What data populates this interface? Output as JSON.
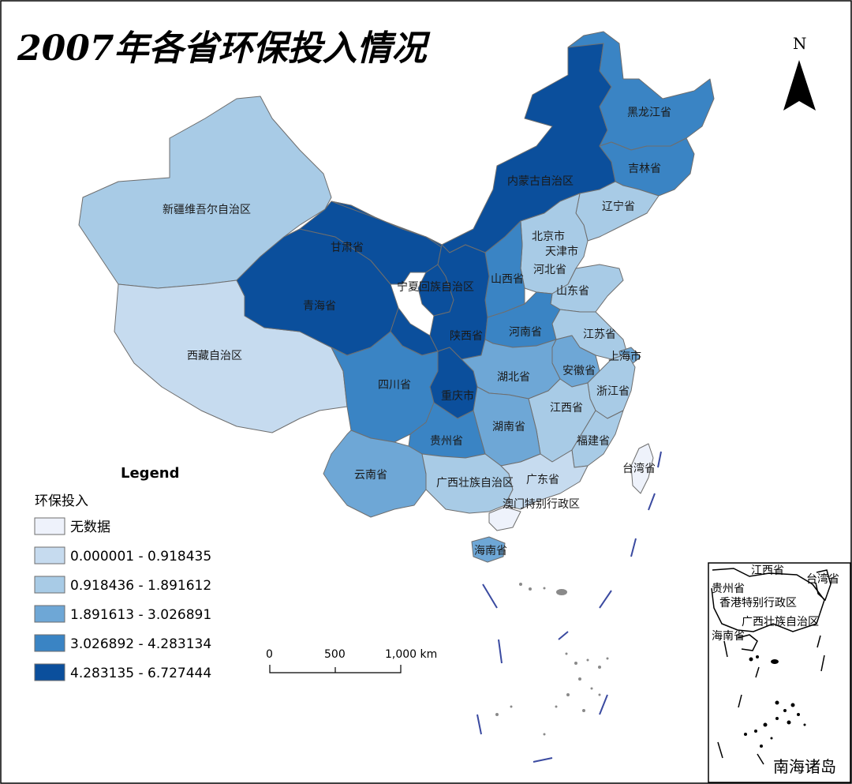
{
  "title": "2007年各省环保投入情况",
  "legend": {
    "heading": "Legend",
    "field": "环保投入",
    "classes": [
      {
        "label": "无数据",
        "color": "#eef2fb"
      },
      {
        "label": "0.000001 - 0.918435",
        "color": "#c6dbef"
      },
      {
        "label": "0.918436 - 1.891612",
        "color": "#a8cbe6"
      },
      {
        "label": "1.891613 - 3.026891",
        "color": "#6ea7d6"
      },
      {
        "label": "3.026892 - 4.283134",
        "color": "#3a84c4"
      },
      {
        "label": "4.283135 - 6.727444",
        "color": "#0b4f9c"
      }
    ]
  },
  "scale": {
    "ticks": [
      "0",
      "500",
      "1,000 km"
    ]
  },
  "north": "N",
  "inset": {
    "title": "南海诸岛",
    "labels": [
      "江西省",
      "贵州省",
      "台湾省",
      "香港特别行政区",
      "广西壮族自治区",
      "海南省"
    ]
  },
  "provinces": [
    {
      "name": "新疆维吾尔自治区",
      "cls": 2
    },
    {
      "name": "西藏自治区",
      "cls": 1
    },
    {
      "name": "青海省",
      "cls": 5
    },
    {
      "name": "甘肃省",
      "cls": 5
    },
    {
      "name": "内蒙古自治区",
      "cls": 5
    },
    {
      "name": "黑龙江省",
      "cls": 4
    },
    {
      "name": "吉林省",
      "cls": 4
    },
    {
      "name": "辽宁省",
      "cls": 2
    },
    {
      "name": "北京市",
      "cls": 3
    },
    {
      "name": "天津市",
      "cls": 2
    },
    {
      "name": "河北省",
      "cls": 2
    },
    {
      "name": "山西省",
      "cls": 4
    },
    {
      "name": "宁夏回族自治区",
      "cls": 5
    },
    {
      "name": "陕西省",
      "cls": 5
    },
    {
      "name": "山东省",
      "cls": 2
    },
    {
      "name": "河南省",
      "cls": 4
    },
    {
      "name": "江苏省",
      "cls": 2
    },
    {
      "name": "上海市",
      "cls": 3
    },
    {
      "name": "安徽省",
      "cls": 3
    },
    {
      "name": "湖北省",
      "cls": 3
    },
    {
      "name": "重庆市",
      "cls": 5
    },
    {
      "name": "四川省",
      "cls": 4
    },
    {
      "name": "浙江省",
      "cls": 2
    },
    {
      "name": "江西省",
      "cls": 2
    },
    {
      "name": "湖南省",
      "cls": 3
    },
    {
      "name": "贵州省",
      "cls": 4
    },
    {
      "name": "福建省",
      "cls": 2
    },
    {
      "name": "云南省",
      "cls": 3
    },
    {
      "name": "广西壮族自治区",
      "cls": 2
    },
    {
      "name": "广东省",
      "cls": 1
    },
    {
      "name": "澳门特别行政区",
      "cls": 0
    },
    {
      "name": "台湾省",
      "cls": 0
    },
    {
      "name": "海南省",
      "cls": 3
    }
  ]
}
